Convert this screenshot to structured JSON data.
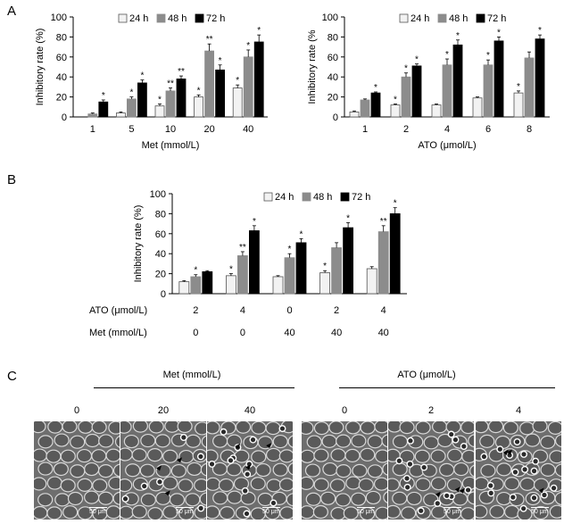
{
  "panels": {
    "A_label": "A",
    "B_label": "B",
    "C_label": "C"
  },
  "colors": {
    "h24": "#f2f2f2",
    "h48": "#8c8c8c",
    "h72": "#000000",
    "h24_stroke": "#555555"
  },
  "legend": [
    "24 h",
    "48 h",
    "72 h"
  ],
  "chart_data": [
    {
      "type": "bar",
      "categories": [
        "1",
        "5",
        "10",
        "20",
        "40"
      ],
      "xlabel": "Met (mmol/L)",
      "ylabel": "Inhibitory rate (%)",
      "ylim": [
        0,
        100
      ],
      "yticks": [
        0,
        20,
        40,
        60,
        80,
        100
      ],
      "series": [
        {
          "name": "24 h",
          "values": [
            0,
            4,
            11,
            20,
            29
          ],
          "errors": [
            0,
            1,
            2,
            2,
            3
          ],
          "stars": [
            "",
            "",
            "*",
            "*",
            "*"
          ]
        },
        {
          "name": "48 h",
          "values": [
            3,
            18,
            26,
            66,
            60
          ],
          "errors": [
            1,
            2,
            3,
            7,
            7
          ],
          "stars": [
            "",
            "*",
            "**",
            "**",
            "*"
          ]
        },
        {
          "name": "72 h",
          "values": [
            15,
            34,
            38,
            47,
            75
          ],
          "errors": [
            2,
            3,
            3,
            5,
            7
          ],
          "stars": [
            "*",
            "*",
            "**",
            "*",
            "*"
          ]
        }
      ]
    },
    {
      "type": "bar",
      "categories": [
        "1",
        "2",
        "4",
        "6",
        "8"
      ],
      "xlabel": "ATO (μmol/L)",
      "ylabel": "Inhibitory rate (%",
      "ylim": [
        0,
        100
      ],
      "yticks": [
        0,
        20,
        40,
        60,
        80,
        100
      ],
      "series": [
        {
          "name": "24 h",
          "values": [
            5,
            12,
            12,
            19,
            24
          ],
          "errors": [
            1,
            1,
            1,
            1,
            2
          ],
          "stars": [
            "",
            "*",
            "",
            "",
            "*"
          ]
        },
        {
          "name": "48 h",
          "values": [
            17,
            40,
            52,
            52,
            59
          ],
          "errors": [
            1,
            4,
            6,
            5,
            6
          ],
          "stars": [
            "",
            "*",
            "*",
            "*",
            ""
          ]
        },
        {
          "name": "72 h",
          "values": [
            24,
            51,
            72,
            76,
            78
          ],
          "errors": [
            1,
            2,
            5,
            4,
            4
          ],
          "stars": [
            "*",
            "*",
            "*",
            "*",
            "*"
          ]
        }
      ]
    },
    {
      "type": "bar",
      "row_labels": [
        "ATO (μmol/L)",
        "Met (mmol/L)"
      ],
      "categories_row1": [
        "2",
        "4",
        "0",
        "2",
        "4"
      ],
      "categories_row2": [
        "0",
        "0",
        "40",
        "40",
        "40"
      ],
      "ylabel": "Inhibitory rate (%)",
      "ylim": [
        0,
        100
      ],
      "yticks": [
        0,
        20,
        40,
        60,
        80,
        100
      ],
      "series": [
        {
          "name": "24 h",
          "values": [
            12,
            18,
            17,
            21,
            25
          ],
          "errors": [
            1,
            2,
            1,
            2,
            2
          ],
          "stars": [
            "",
            "*",
            "",
            "*",
            ""
          ]
        },
        {
          "name": "48 h",
          "values": [
            17,
            38,
            36,
            46,
            62
          ],
          "errors": [
            2,
            4,
            4,
            5,
            6
          ],
          "stars": [
            "*",
            "**",
            "*",
            "",
            "**"
          ]
        },
        {
          "name": "72 h",
          "values": [
            22,
            63,
            51,
            66,
            80
          ],
          "errors": [
            1,
            5,
            4,
            5,
            6
          ],
          "stars": [
            "",
            "*",
            "*",
            "*",
            "*"
          ]
        }
      ]
    }
  ],
  "panelC": {
    "groups": [
      {
        "title": "Met (mmol/L)",
        "doses": [
          "0",
          "20",
          "40"
        ]
      },
      {
        "title": "ATO (μmol/L)",
        "doses": [
          "0",
          "2",
          "4"
        ]
      }
    ],
    "scale_label": "50 μm"
  }
}
